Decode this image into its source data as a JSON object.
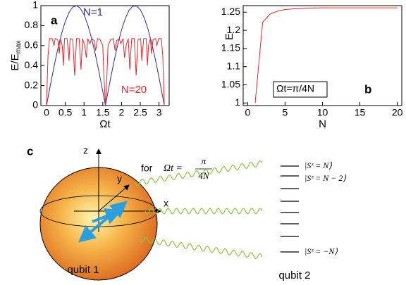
{
  "chart_data": [
    {
      "type": "line",
      "panel": "a",
      "x_label": "Ωt",
      "y_label": "E/E",
      "y_label_sub": "max",
      "xlim": [
        -0.15,
        3.27
      ],
      "ylim": [
        0,
        1
      ],
      "xticks": [
        0,
        0.5,
        1,
        1.5,
        2,
        2.5,
        3
      ],
      "yticks": [
        0,
        0.2,
        0.4,
        0.6,
        0.8,
        1
      ],
      "series": [
        {
          "name": "N=1",
          "color": "#2e2e8c",
          "x": [
            0,
            0.1,
            0.2,
            0.3,
            0.4,
            0.5,
            0.6,
            0.7,
            0.8,
            0.9,
            1.0,
            1.1,
            1.2,
            1.3,
            1.4,
            1.5,
            1.57,
            1.7,
            1.8,
            1.9,
            2.0,
            2.1,
            2.2,
            2.3,
            2.4,
            2.5,
            2.6,
            2.7,
            2.8,
            2.9,
            3.0,
            3.1,
            3.14
          ],
          "values": [
            0,
            0.199,
            0.389,
            0.565,
            0.717,
            0.841,
            0.932,
            0.985,
            1.0,
            0.974,
            0.909,
            0.808,
            0.675,
            0.516,
            0.335,
            0.141,
            0,
            0.256,
            0.443,
            0.612,
            0.757,
            0.872,
            0.952,
            0.994,
            0.996,
            0.959,
            0.883,
            0.773,
            0.631,
            0.465,
            0.279,
            0.083,
            0.003
          ]
        },
        {
          "name": "N=20",
          "color": "#e8262b",
          "x": [
            0,
            0.04,
            0.08,
            0.15,
            0.2,
            0.23,
            0.3,
            0.34,
            0.37,
            0.42,
            0.45,
            0.48,
            0.55,
            0.6,
            0.63,
            0.7,
            0.75,
            0.8,
            0.87,
            0.92,
            0.96,
            1.02,
            1.06,
            1.1,
            1.16,
            1.2,
            1.27,
            1.31,
            1.36,
            1.43,
            1.5,
            1.53,
            1.57,
            1.61,
            1.64,
            1.71,
            1.78,
            1.83,
            1.87,
            1.94,
            1.98,
            2.04,
            2.08,
            2.12,
            2.18,
            2.22,
            2.27,
            2.34,
            2.39,
            2.44,
            2.51,
            2.54,
            2.59,
            2.66,
            2.69,
            2.72,
            2.77,
            2.8,
            2.84,
            2.91,
            2.94,
            2.99,
            3.06,
            3.1,
            3.14
          ],
          "values": [
            0,
            0.5,
            0.67,
            0.67,
            0.6,
            0.67,
            0.66,
            0.52,
            0.67,
            0.6,
            0.4,
            0.67,
            0.67,
            0.45,
            0.67,
            0.66,
            0.3,
            0.67,
            0.67,
            0.36,
            0.67,
            0.6,
            0.48,
            0.67,
            0.62,
            0.67,
            0.65,
            0.55,
            0.67,
            0.66,
            0.6,
            0.3,
            0,
            0.3,
            0.6,
            0.66,
            0.67,
            0.55,
            0.65,
            0.67,
            0.62,
            0.67,
            0.48,
            0.6,
            0.67,
            0.36,
            0.67,
            0.67,
            0.3,
            0.66,
            0.67,
            0.45,
            0.67,
            0.67,
            0.4,
            0.6,
            0.67,
            0.52,
            0.66,
            0.67,
            0.6,
            0.67,
            0.67,
            0.5,
            0
          ]
        }
      ]
    },
    {
      "type": "line",
      "panel": "b",
      "x_label": "N",
      "y_label": "E",
      "annotation": "Ωt=π/4N",
      "xlim": [
        -0.6,
        20.6
      ],
      "ylim": [
        0.993,
        1.268
      ],
      "xticks": [
        0,
        5,
        10,
        15,
        20
      ],
      "yticks": [
        1,
        1.05,
        1.1,
        1.15,
        1.2,
        1.25
      ],
      "color": "#e8262b",
      "x": [
        1,
        2,
        3,
        4,
        5,
        6,
        7,
        8,
        10,
        12,
        15,
        20
      ],
      "values": [
        1.0,
        1.222,
        1.245,
        1.253,
        1.257,
        1.259,
        1.26,
        1.261,
        1.262,
        1.262,
        1.262,
        1.262
      ]
    }
  ],
  "diagram": {
    "panel": "c",
    "axes": [
      "z",
      "y",
      "x"
    ],
    "condition_prefix": "for",
    "condition_lhs": "Ωt =",
    "condition_numerator": "π",
    "condition_denominator": "4N",
    "qubit_1": "qubit 1",
    "qubit_2": "qubit 2",
    "states": [
      "|Sᶻ = N⟩",
      "|Sᶻ = N − 2⟩",
      "|Sᶻ = −N⟩"
    ]
  }
}
